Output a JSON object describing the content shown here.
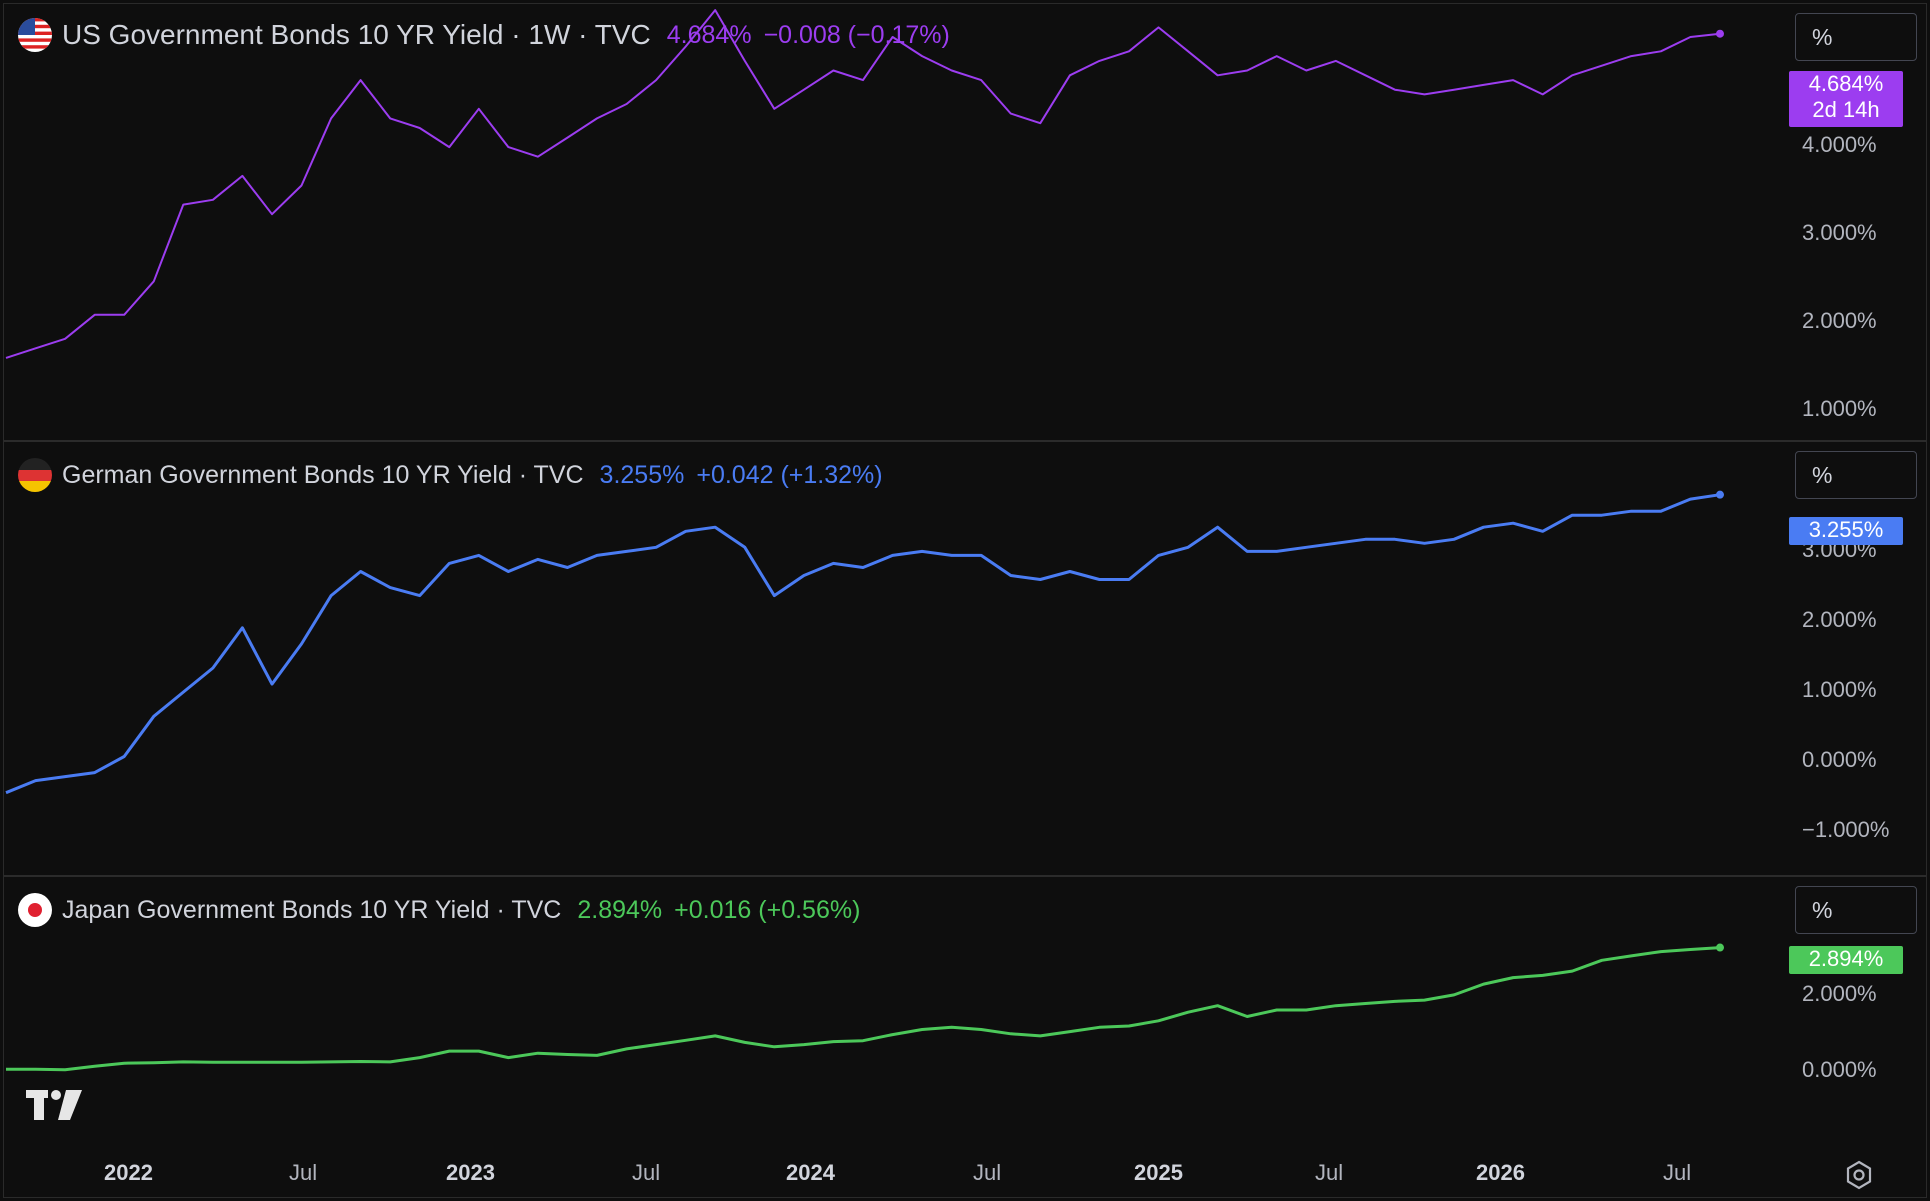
{
  "panes": [
    {
      "title": "US Government Bonds 10 YR Yield · 1W · TVC",
      "value": "4.684%",
      "change": "−0.008 (−0.17%)",
      "color": "#9c3df0",
      "scale_label": "%",
      "badge_value": "4.684%",
      "badge_countdown": "2d 14h",
      "ticks": [
        "4.000%",
        "3.000%",
        "2.000%",
        "1.000%"
      ]
    },
    {
      "title": "German Government Bonds 10 YR Yield · TVC",
      "value": "3.255%",
      "change": "+0.042 (+1.32%)",
      "color": "#4a7cf3",
      "scale_label": "%",
      "badge_value": "3.255%",
      "ticks": [
        "3.000%",
        "2.000%",
        "1.000%",
        "0.000%",
        "−1.000%"
      ]
    },
    {
      "title": "Japan Government Bonds 10 YR Yield · TVC",
      "value": "2.894%",
      "change": "+0.016 (+0.56%)",
      "color": "#4cc85a",
      "scale_label": "%",
      "badge_value": "2.894%",
      "ticks": [
        "2.000%",
        "0.000%"
      ]
    }
  ],
  "x_axis": {
    "labels": [
      "2022",
      "Jul",
      "2023",
      "Jul",
      "2024",
      "Jul",
      "2025",
      "Jul",
      "2026",
      "Jul"
    ]
  },
  "icons": [
    "us-flag-icon",
    "germany-flag-icon",
    "japan-flag-icon",
    "tradingview-logo-icon",
    "settings-gear-icon"
  ],
  "chart_data": [
    {
      "type": "line",
      "title": "US Government Bonds 10 YR Yield · 1W · TVC",
      "ylabel": "%",
      "ylim": [
        0.6,
        4.9
      ],
      "x": [
        "2021-10",
        "2021-11",
        "2021-12",
        "2022-01",
        "2022-02",
        "2022-03",
        "2022-04",
        "2022-05",
        "2022-06",
        "2022-07",
        "2022-08",
        "2022-09",
        "2022-10",
        "2022-11",
        "2022-12",
        "2023-01",
        "2023-02",
        "2023-03",
        "2023-04",
        "2023-05",
        "2023-06",
        "2023-07",
        "2023-08",
        "2023-09",
        "2023-10",
        "2023-11",
        "2023-12",
        "2024-01",
        "2024-02",
        "2024-03",
        "2024-04",
        "2024-05",
        "2024-06",
        "2024-07",
        "2024-08",
        "2024-09",
        "2024-10",
        "2024-11",
        "2024-12",
        "2025-01",
        "2025-02",
        "2025-03",
        "2025-04",
        "2025-05",
        "2025-06",
        "2025-07",
        "2025-08",
        "2025-09",
        "2025-10",
        "2025-11",
        "2025-12",
        "2026-01",
        "2026-02",
        "2026-03",
        "2026-04",
        "2026-05",
        "2026-06",
        "2026-07",
        "2026-08"
      ],
      "series": [
        {
          "values": [
            1.3,
            1.4,
            1.5,
            1.75,
            1.75,
            2.1,
            2.9,
            2.95,
            3.2,
            2.8,
            3.1,
            3.8,
            4.2,
            3.8,
            3.7,
            3.5,
            3.9,
            3.5,
            3.4,
            3.6,
            3.8,
            3.95,
            4.2,
            4.55,
            4.93,
            4.4,
            3.9,
            4.1,
            4.3,
            4.2,
            4.65,
            4.45,
            4.3,
            4.2,
            3.85,
            3.75,
            4.25,
            4.4,
            4.5,
            4.75,
            4.5,
            4.25,
            4.3,
            4.45,
            4.3,
            4.4,
            4.25,
            4.1,
            4.05,
            4.1,
            4.15,
            4.2,
            4.05,
            4.25,
            4.35,
            4.45,
            4.5,
            4.65,
            4.684
          ]
        }
      ]
    },
    {
      "type": "line",
      "title": "German Government Bonds 10 YR Yield · TVC",
      "ylabel": "%",
      "ylim": [
        -1.2,
        3.4
      ],
      "x": [
        "2021-10",
        "2021-11",
        "2021-12",
        "2022-01",
        "2022-02",
        "2022-03",
        "2022-04",
        "2022-05",
        "2022-06",
        "2022-07",
        "2022-08",
        "2022-09",
        "2022-10",
        "2022-11",
        "2022-12",
        "2023-01",
        "2023-02",
        "2023-03",
        "2023-04",
        "2023-05",
        "2023-06",
        "2023-07",
        "2023-08",
        "2023-09",
        "2023-10",
        "2023-11",
        "2023-12",
        "2024-01",
        "2024-02",
        "2024-03",
        "2024-04",
        "2024-05",
        "2024-06",
        "2024-07",
        "2024-08",
        "2024-09",
        "2024-10",
        "2024-11",
        "2024-12",
        "2025-01",
        "2025-02",
        "2025-03",
        "2025-04",
        "2025-05",
        "2025-06",
        "2025-07",
        "2025-08",
        "2025-09",
        "2025-10",
        "2025-11",
        "2025-12",
        "2026-01",
        "2026-02",
        "2026-03",
        "2026-04",
        "2026-05",
        "2026-06",
        "2026-07",
        "2026-08"
      ],
      "series": [
        {
          "values": [
            -0.45,
            -0.3,
            -0.25,
            -0.2,
            0.0,
            0.5,
            0.8,
            1.1,
            1.6,
            0.9,
            1.4,
            2.0,
            2.3,
            2.1,
            2.0,
            2.4,
            2.5,
            2.3,
            2.45,
            2.35,
            2.5,
            2.55,
            2.6,
            2.8,
            2.85,
            2.6,
            2.0,
            2.25,
            2.4,
            2.35,
            2.5,
            2.55,
            2.5,
            2.5,
            2.25,
            2.2,
            2.3,
            2.2,
            2.2,
            2.5,
            2.6,
            2.85,
            2.55,
            2.55,
            2.6,
            2.65,
            2.7,
            2.7,
            2.65,
            2.7,
            2.85,
            2.9,
            2.8,
            3.0,
            3.0,
            3.05,
            3.05,
            3.2,
            3.255
          ]
        }
      ]
    },
    {
      "type": "line",
      "title": "Japan Government Bonds 10 YR Yield · TVC",
      "ylabel": "%",
      "ylim": [
        -0.4,
        3.3
      ],
      "x": [
        "2021-10",
        "2021-11",
        "2021-12",
        "2022-01",
        "2022-02",
        "2022-03",
        "2022-04",
        "2022-05",
        "2022-06",
        "2022-07",
        "2022-08",
        "2022-09",
        "2022-10",
        "2022-11",
        "2022-12",
        "2023-01",
        "2023-02",
        "2023-03",
        "2023-04",
        "2023-05",
        "2023-06",
        "2023-07",
        "2023-08",
        "2023-09",
        "2023-10",
        "2023-11",
        "2023-12",
        "2024-01",
        "2024-02",
        "2024-03",
        "2024-04",
        "2024-05",
        "2024-06",
        "2024-07",
        "2024-08",
        "2024-09",
        "2024-10",
        "2024-11",
        "2024-12",
        "2025-01",
        "2025-02",
        "2025-03",
        "2025-04",
        "2025-05",
        "2025-06",
        "2025-07",
        "2025-08",
        "2025-09",
        "2025-10",
        "2025-11",
        "2025-12",
        "2026-01",
        "2026-02",
        "2026-03",
        "2026-04",
        "2026-05",
        "2026-06",
        "2026-07",
        "2026-08"
      ],
      "series": [
        {
          "values": [
            0.08,
            0.08,
            0.07,
            0.15,
            0.22,
            0.23,
            0.25,
            0.24,
            0.24,
            0.24,
            0.24,
            0.25,
            0.26,
            0.25,
            0.35,
            0.5,
            0.5,
            0.35,
            0.45,
            0.42,
            0.4,
            0.55,
            0.65,
            0.75,
            0.85,
            0.7,
            0.6,
            0.65,
            0.72,
            0.74,
            0.88,
            1.0,
            1.05,
            1.0,
            0.9,
            0.85,
            0.95,
            1.05,
            1.08,
            1.2,
            1.4,
            1.55,
            1.3,
            1.45,
            1.45,
            1.55,
            1.6,
            1.65,
            1.68,
            1.8,
            2.05,
            2.2,
            2.25,
            2.35,
            2.6,
            2.7,
            2.8,
            2.85,
            2.894
          ]
        }
      ]
    }
  ]
}
